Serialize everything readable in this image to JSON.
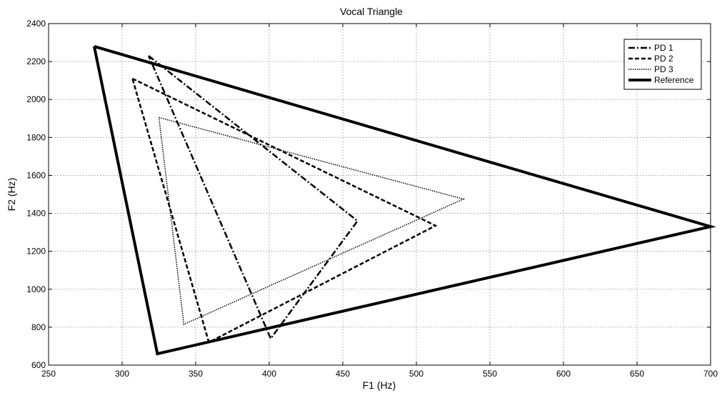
{
  "chart_data": {
    "type": "line",
    "title": "Vocal Triangle",
    "xlabel": "F1 (Hz)",
    "ylabel": "F2 (Hz)",
    "xlim": [
      250,
      700
    ],
    "ylim": [
      600,
      2400
    ],
    "xticks": [
      250,
      300,
      350,
      400,
      450,
      500,
      550,
      600,
      650,
      700
    ],
    "yticks": [
      600,
      800,
      1000,
      1200,
      1400,
      1600,
      1800,
      2000,
      2200,
      2400
    ],
    "grid": true,
    "legend": "top-right",
    "series": [
      {
        "name": "PD 1",
        "style": "dashdot",
        "color": "#000000",
        "x": [
          318,
          460,
          401,
          318
        ],
        "y": [
          2230,
          1360,
          740,
          2230
        ]
      },
      {
        "name": "PD 2",
        "style": "dashed",
        "color": "#000000",
        "x": [
          307,
          513,
          359,
          307
        ],
        "y": [
          2110,
          1335,
          720,
          2110
        ]
      },
      {
        "name": "PD 3",
        "style": "dotted",
        "color": "#000000",
        "x": [
          325,
          532,
          342,
          325
        ],
        "y": [
          1905,
          1475,
          815,
          1905
        ]
      },
      {
        "name": "Reference",
        "style": "solid-thick",
        "color": "#000000",
        "x": [
          281,
          700,
          324,
          281
        ],
        "y": [
          2280,
          1330,
          660,
          2280
        ]
      }
    ]
  }
}
